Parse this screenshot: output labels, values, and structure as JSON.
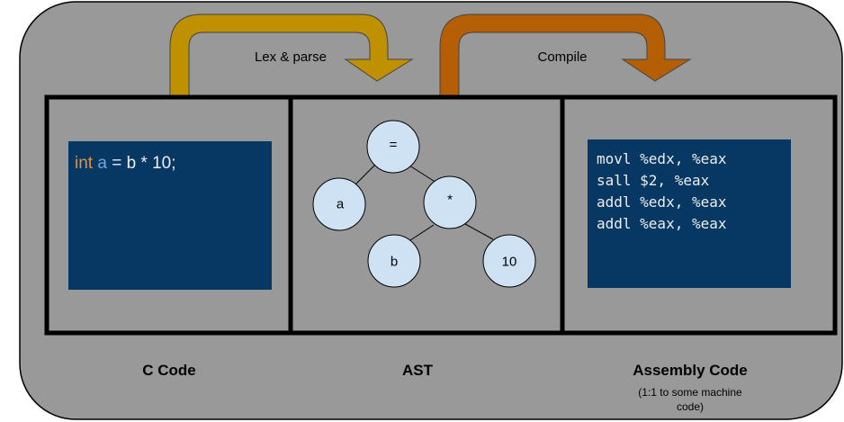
{
  "arrows": {
    "lex_parse": "Lex & parse",
    "compile": "Compile"
  },
  "c_code": {
    "keyword_int": "int",
    "var_a": "a",
    "rest": " = b * 10;"
  },
  "ast": {
    "nodes": {
      "assign": "=",
      "a": "a",
      "mul": "*",
      "b": "b",
      "ten": "10"
    }
  },
  "assembly": {
    "lines": [
      "movl %edx, %eax",
      "sall $2, %eax",
      "addl %edx, %eax",
      "addl %eax, %eax"
    ]
  },
  "labels": {
    "c_code": "C Code",
    "ast": "AST",
    "assembly": "Assembly Code",
    "assembly_note_line1": "(1:1 to some machine",
    "assembly_note_line2": "code)"
  },
  "colors": {
    "background_panel": "#999999",
    "code_box": "#073763",
    "arrow_lex": "#bf9000",
    "arrow_compile": "#b45f06",
    "node_fill": "#cfe2f3"
  }
}
